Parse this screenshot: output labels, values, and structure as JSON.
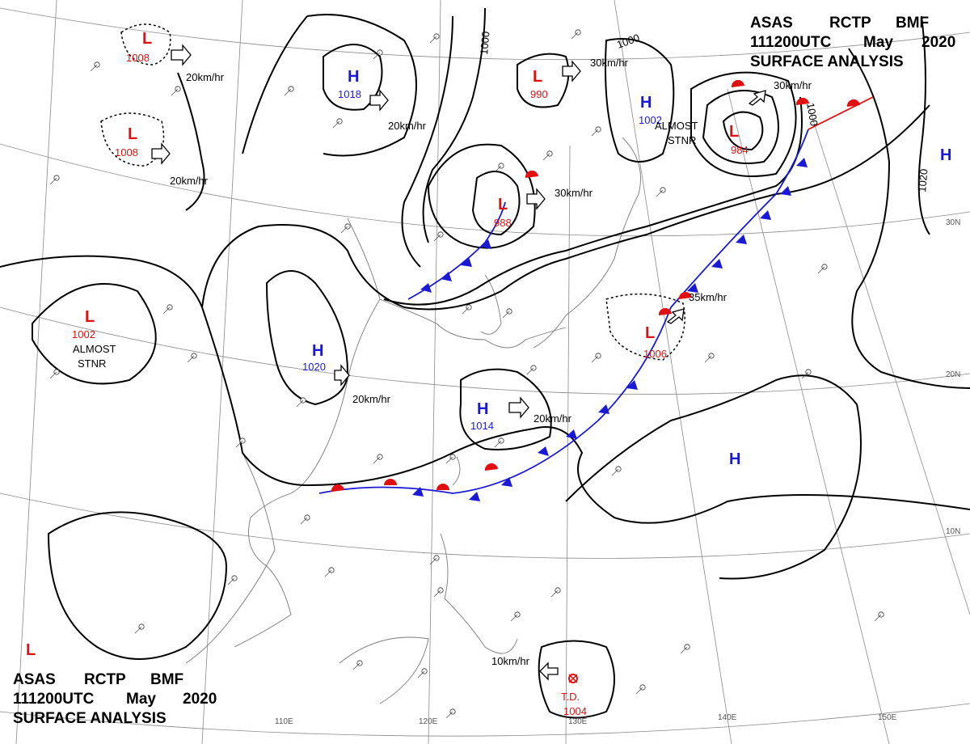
{
  "header_top": {
    "line1": [
      "ASAS",
      "RCTP",
      "BMF"
    ],
    "line2": [
      "111200UTC",
      "May",
      "2020"
    ],
    "line3": "SURFACE ANALYSIS"
  },
  "header_bottom": {
    "line1": [
      "ASAS",
      "RCTP",
      "BMF"
    ],
    "line2": [
      "111200UTC",
      "May",
      "2020"
    ],
    "line3": "SURFACE ANALYSIS"
  },
  "colors": {
    "low": "#e01010",
    "high": "#1a1ad6",
    "isobar": "#000000",
    "grid": "#8a8a8a",
    "coast": "#7a7a7a"
  },
  "isobar_labels": [
    "1000",
    "1000",
    "1000",
    "1020"
  ],
  "longitude_labels": [
    "110E",
    "120E",
    "130E",
    "140E",
    "150E"
  ],
  "latitude_labels": [
    "30N",
    "20N",
    "10N"
  ],
  "pressure_centers": [
    {
      "symbol": "L",
      "value": "1008",
      "kind": "low"
    },
    {
      "symbol": "L",
      "value": "1008",
      "kind": "low"
    },
    {
      "symbol": "H",
      "value": "1018",
      "kind": "high"
    },
    {
      "symbol": "L",
      "value": "990",
      "kind": "low"
    },
    {
      "symbol": "H",
      "value": "1002",
      "kind": "high"
    },
    {
      "symbol": "L",
      "value": "984",
      "kind": "low"
    },
    {
      "symbol": "L",
      "value": "988",
      "kind": "low"
    },
    {
      "symbol": "L",
      "value": "1002",
      "kind": "low"
    },
    {
      "symbol": "H",
      "value": "1020",
      "kind": "high"
    },
    {
      "symbol": "H",
      "value": "1014",
      "kind": "high"
    },
    {
      "symbol": "L",
      "value": "1006",
      "kind": "low"
    },
    {
      "symbol": "H",
      "value": "",
      "kind": "high"
    },
    {
      "symbol": "H",
      "value": "",
      "kind": "high"
    },
    {
      "symbol": "L",
      "value": "",
      "kind": "low"
    }
  ],
  "td": {
    "label": "T.D.",
    "value": "1004"
  },
  "motions": [
    "20km/hr",
    "20km/hr",
    "20km/hr",
    "30km/hr",
    "30km/hr",
    "30km/hr",
    "35km/hr",
    "20km/hr",
    "20km/hr",
    "10km/hr"
  ],
  "notes": [
    {
      "l1": "ALMOST",
      "l2": "STNR"
    },
    {
      "l1": "ALMOST",
      "l2": "STNR"
    }
  ]
}
